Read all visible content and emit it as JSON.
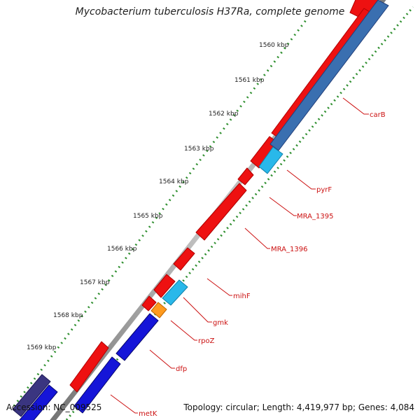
{
  "title": "Mycobacterium tuberculosis H37Ra, complete genome",
  "ticks": [
    "1560 kbp",
    "1561 kbp",
    "1562 kbp",
    "1563 kbp",
    "1564 kbp",
    "1565 kbp",
    "1566 kbp",
    "1567 kbp",
    "1568 kbp",
    "1569 kbp"
  ],
  "genes": [
    {
      "name": "carB",
      "strand": "minus"
    },
    {
      "name": "pyrF",
      "strand": "minus"
    },
    {
      "name": "MRA_1395",
      "strand": "plus"
    },
    {
      "name": "MRA_1396",
      "strand": "plus"
    },
    {
      "name": "mihF",
      "strand": "plus"
    },
    {
      "name": "gmk",
      "strand": "minus"
    },
    {
      "name": "rpoZ",
      "strand": "minus"
    },
    {
      "name": "dfp",
      "strand": "minus"
    },
    {
      "name": "metK",
      "strand": "minus"
    }
  ],
  "colors": {
    "backbone": "#9a9a9a",
    "plus_cds": "#ee1111",
    "minus_cds_light": "#29b8ea",
    "minus_cds_dark": "#1515d8",
    "minus_cds_steel": "#3a6fb0",
    "minus_cds_orange": "#ff9a1e",
    "neighbor_cds": "#3a3580",
    "tick": "#2f8f2f",
    "label": "#cc1111"
  },
  "footer": {
    "accession": "Accession: NC_009525",
    "stats": "Topology: circular; Length: 4,419,977 bp; Genes: 4,084"
  }
}
